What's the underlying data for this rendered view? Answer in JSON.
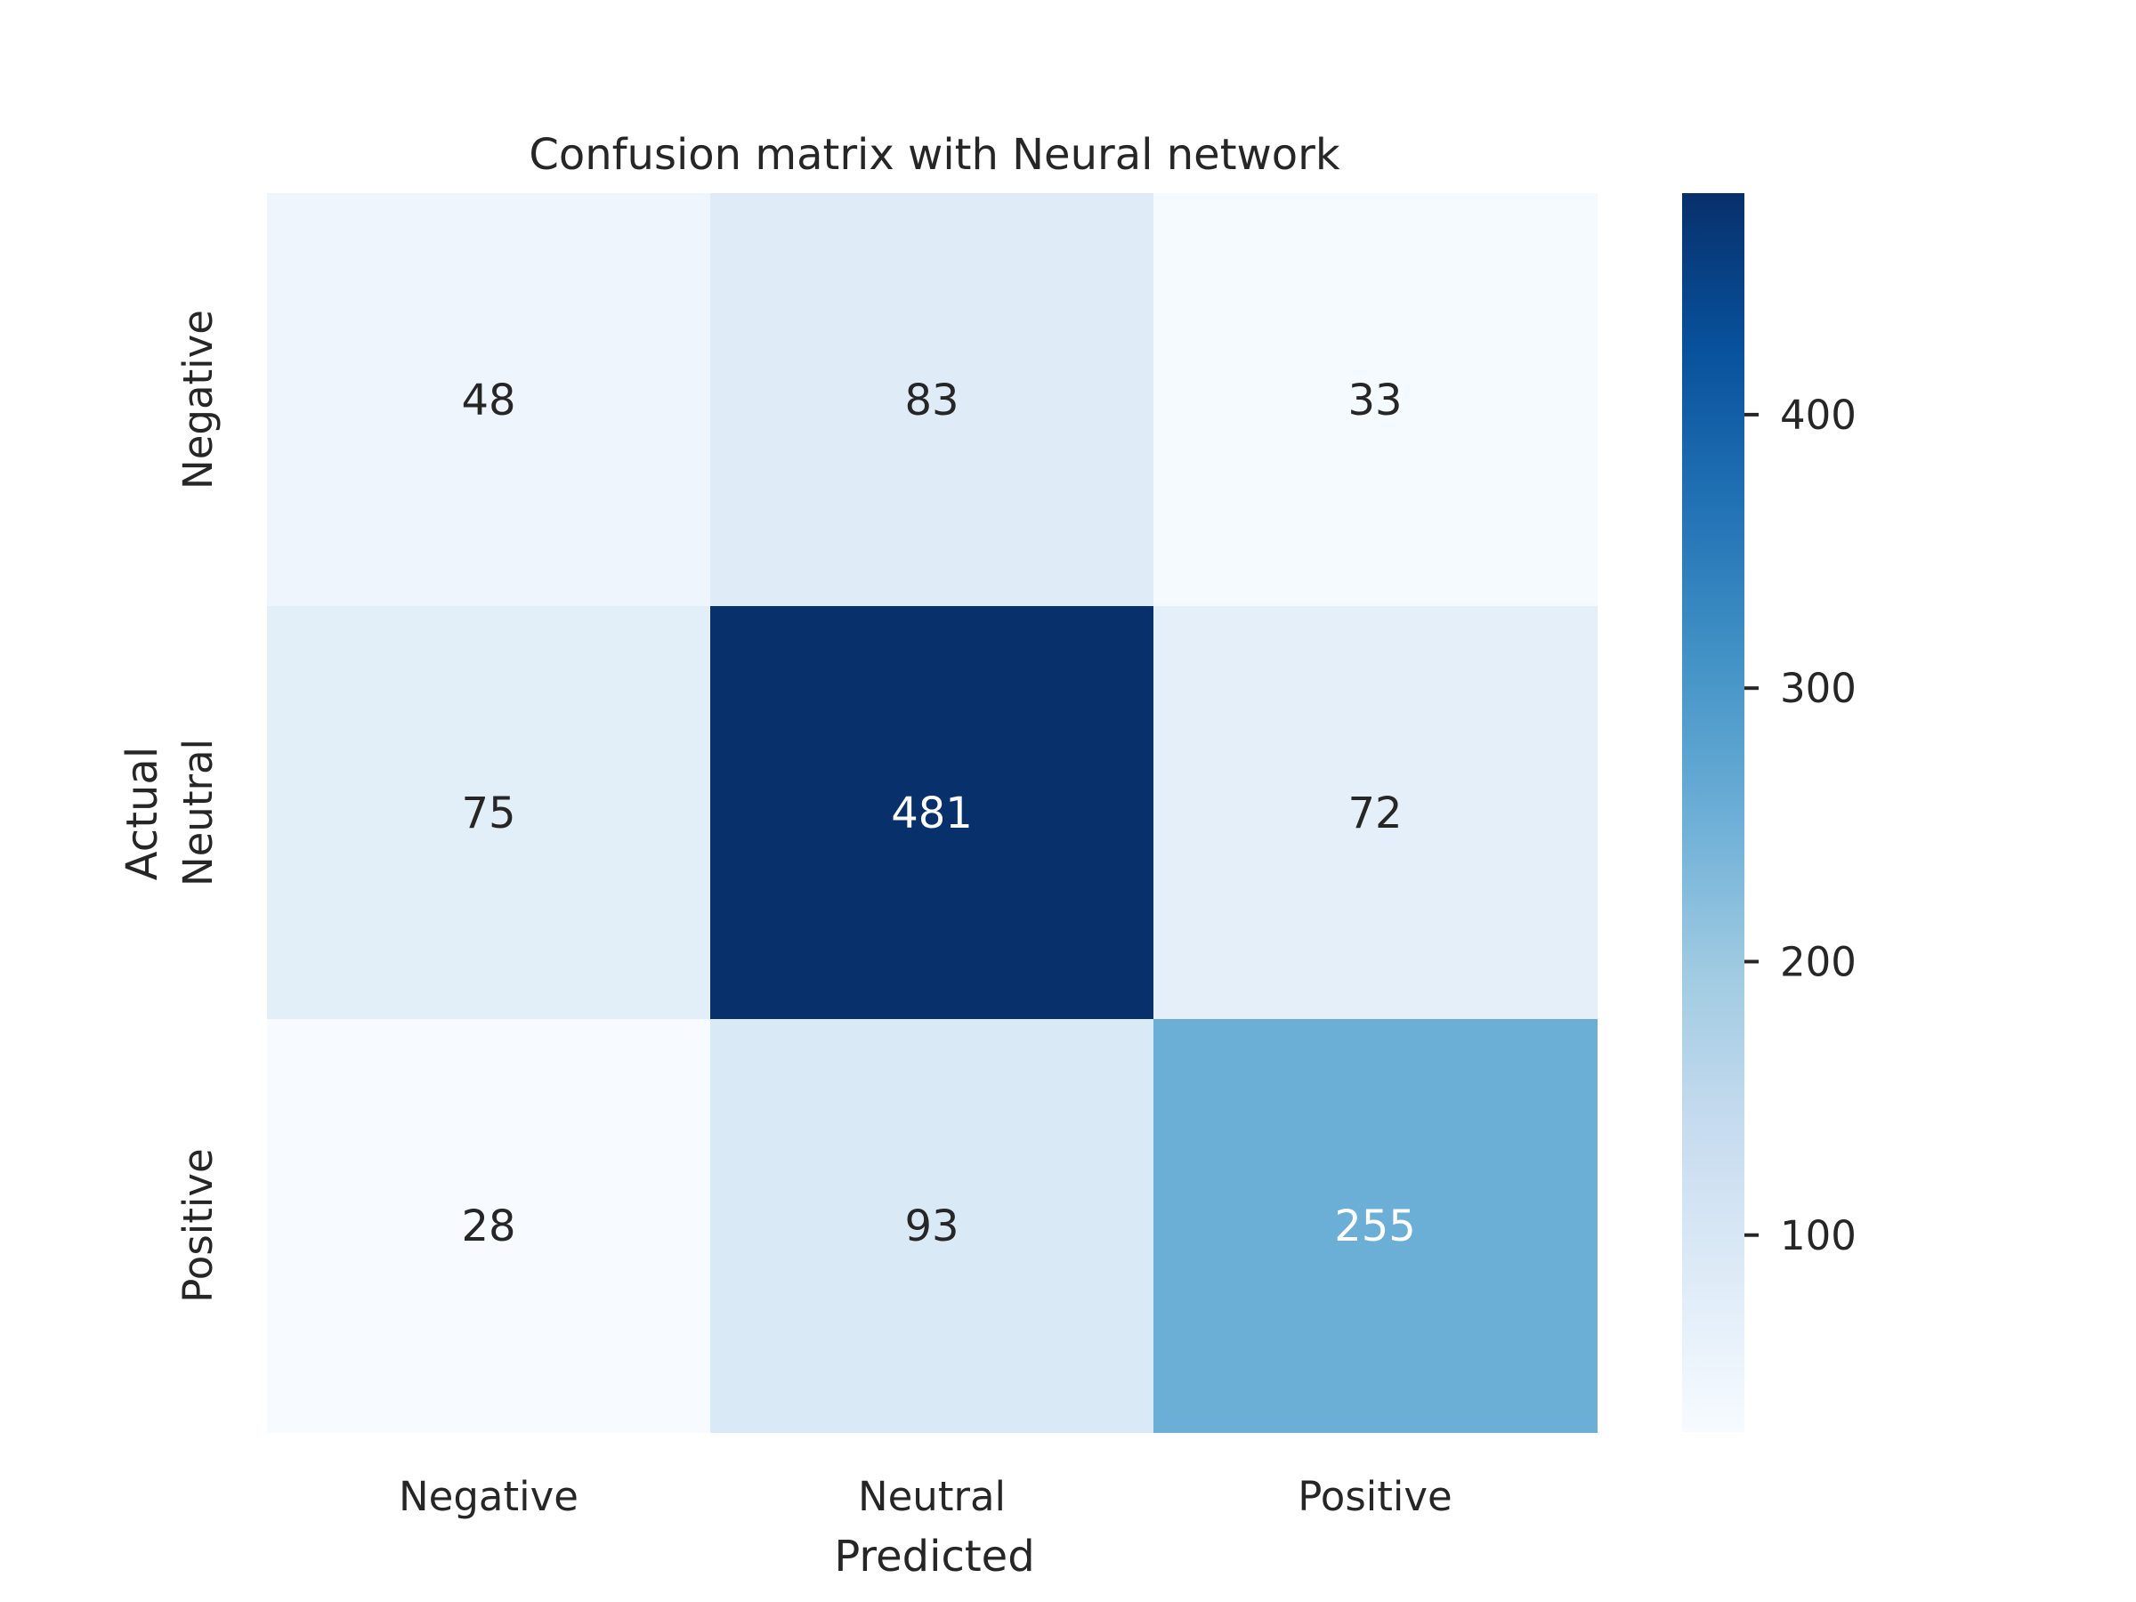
{
  "chart_data": {
    "type": "heatmap",
    "title": "Confusion matrix with Neural network",
    "xlabel": "Predicted",
    "ylabel": "Actual",
    "x_categories": [
      "Negative",
      "Neutral",
      "Positive"
    ],
    "y_categories": [
      "Negative",
      "Neutral",
      "Positive"
    ],
    "values": [
      [
        48,
        83,
        33
      ],
      [
        75,
        481,
        72
      ],
      [
        28,
        93,
        255
      ]
    ],
    "colormap": "Blues",
    "colorbar": {
      "min": 28,
      "max": 481,
      "ticks": [
        100,
        200,
        300,
        400
      ]
    },
    "grid": false
  }
}
